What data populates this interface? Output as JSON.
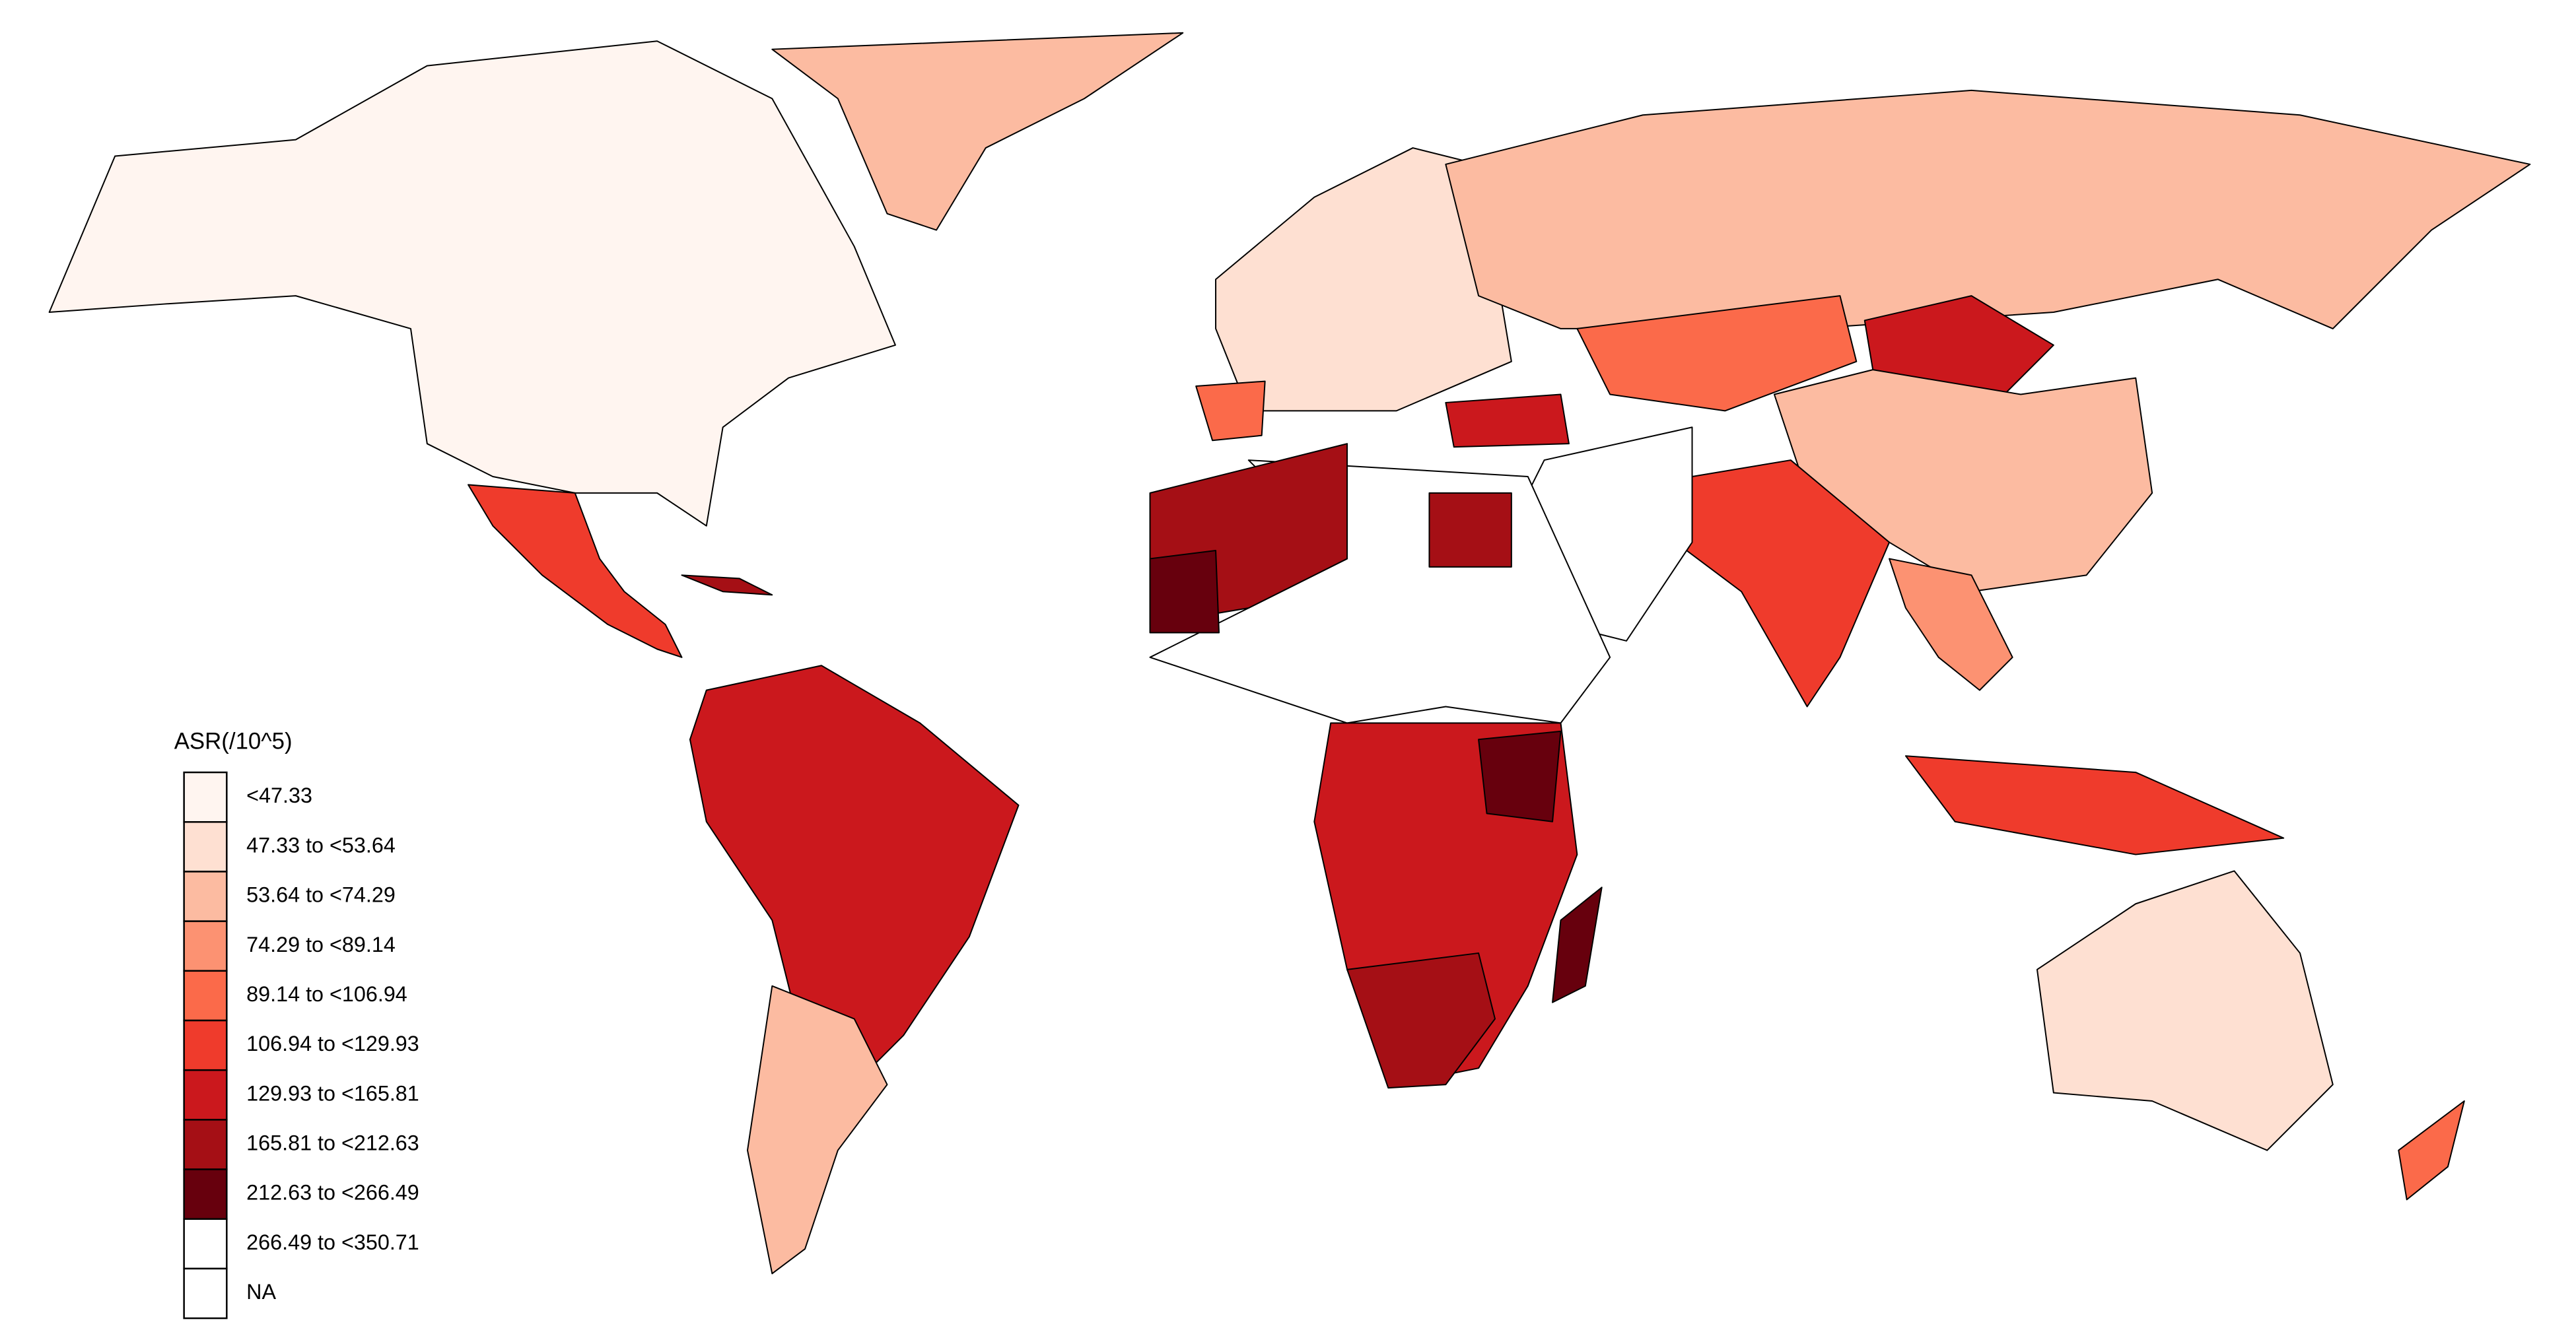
{
  "legend": {
    "title": "ASR(/10^5)",
    "items": [
      {
        "label": "<47.33",
        "color": "#fff5f0"
      },
      {
        "label": "47.33 to <53.64",
        "color": "#fee0d2"
      },
      {
        "label": "53.64 to <74.29",
        "color": "#fcbba1"
      },
      {
        "label": "74.29 to <89.14",
        "color": "#fc9272"
      },
      {
        "label": "89.14 to <106.94",
        "color": "#fb6a4a"
      },
      {
        "label": "106.94 to <129.93",
        "color": "#ef3b2c"
      },
      {
        "label": "129.93 to <165.81",
        "color": "#cb181d"
      },
      {
        "label": "165.81 to <212.63",
        "color": "#a50f15"
      },
      {
        "label": "212.63 to <266.49",
        "color": "#67000d"
      },
      {
        "label": "266.49 to <350.71",
        "color": "#ffffff"
      },
      {
        "label": "NA",
        "color": "#ffffff"
      }
    ]
  }
}
